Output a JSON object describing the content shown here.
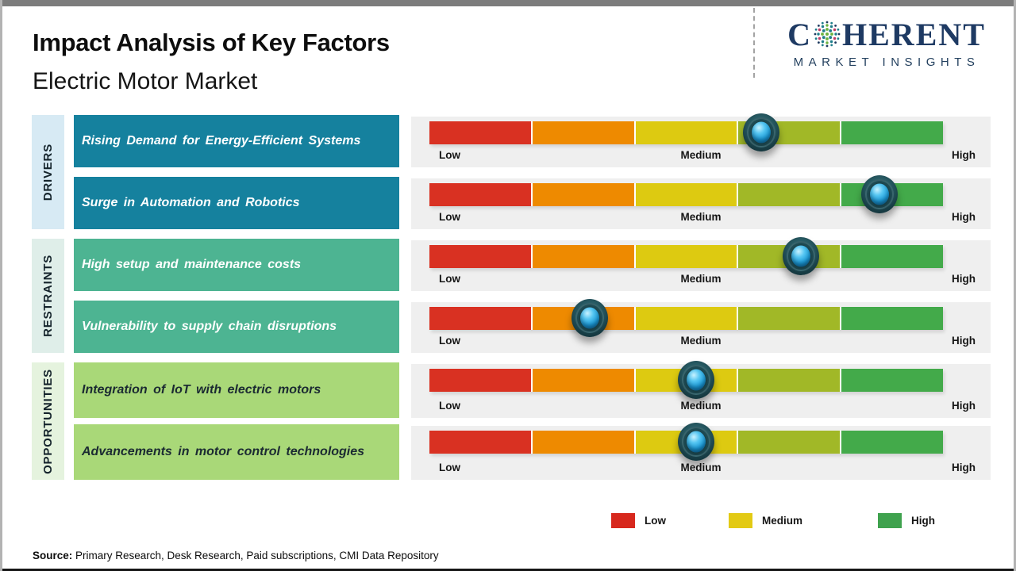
{
  "page": {
    "title": "Impact Analysis of Key Factors",
    "subtitle": "Electric Motor Market",
    "source_label": "Source:",
    "source_text": " Primary Research, Desk Research, Paid subscriptions, CMI Data Repository"
  },
  "logo": {
    "part1": "C",
    "part2": "HERENT",
    "tagline": "MARKET INSIGHTS",
    "brand_color": "#1e3a63"
  },
  "groups": [
    {
      "label": "DRIVERS",
      "strip_color": "#d7eaf4",
      "box_color": "#15819e",
      "text_color": "#ffffff"
    },
    {
      "label": "RESTRAINTS",
      "strip_color": "#dfeee9",
      "box_color": "#4db492",
      "text_color": "#ffffff"
    },
    {
      "label": "OPPORTUNITIES",
      "strip_color": "#e5f3de",
      "box_color": "#a9d878",
      "text_color": "#1b2a32"
    }
  ],
  "scale": {
    "low": "Low",
    "medium": "Medium",
    "high": "High"
  },
  "scale_colors": [
    "#d93122",
    "#ee8a00",
    "#ddca11",
    "#a1b827",
    "#43aa4a"
  ],
  "rows": [
    {
      "group": "DRIVERS",
      "label": "Rising Demand for Energy-Efficient Systems",
      "marker_pos_pct": 64.6
    },
    {
      "group": "DRIVERS",
      "label": "Surge in Automation and Robotics",
      "marker_pos_pct": 87.6
    },
    {
      "group": "RESTRAINTS",
      "label": "High setup and maintenance costs",
      "marker_pos_pct": 72.3
    },
    {
      "group": "RESTRAINTS",
      "label": "Vulnerability to supply chain disruptions",
      "marker_pos_pct": 31.2
    },
    {
      "group": "OPPORTUNITIES",
      "label": "Integration of IoT with electric motors",
      "marker_pos_pct": 51.9
    },
    {
      "group": "OPPORTUNITIES",
      "label": "Advancements in motor control technologies",
      "marker_pos_pct": 51.9
    }
  ],
  "legend": {
    "items": [
      {
        "label": "Low",
        "color": "#d7281d"
      },
      {
        "label": "Medium",
        "color": "#e3ca14"
      },
      {
        "label": "High",
        "color": "#3fa24e"
      }
    ]
  },
  "chart_data": {
    "type": "table",
    "title": "Impact Analysis of Key Factors",
    "subtitle": "Electric Motor Market",
    "scale": {
      "min_label": "Low",
      "mid_label": "Medium",
      "max_label": "High",
      "range": [
        0,
        100
      ]
    },
    "segment_colors": [
      "#d93122",
      "#ee8a00",
      "#ddca11",
      "#a1b827",
      "#43aa4a"
    ],
    "legend": [
      "Low",
      "Medium",
      "High"
    ],
    "legend_position": "bottom",
    "factors": [
      {
        "category": "Drivers",
        "factor": "Rising Demand for Energy-Efficient Systems",
        "impact": 65
      },
      {
        "category": "Drivers",
        "factor": "Surge in Automation and Robotics",
        "impact": 88
      },
      {
        "category": "Restraints",
        "factor": "High setup and maintenance costs",
        "impact": 72
      },
      {
        "category": "Restraints",
        "factor": "Vulnerability to supply chain disruptions",
        "impact": 31
      },
      {
        "category": "Opportunities",
        "factor": "Integration of IoT with electric motors",
        "impact": 52
      },
      {
        "category": "Opportunities",
        "factor": "Advancements in motor control technologies",
        "impact": 52
      }
    ]
  }
}
